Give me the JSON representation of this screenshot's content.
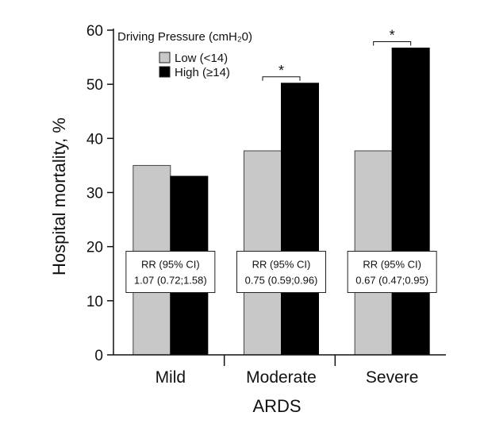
{
  "chart_data": {
    "type": "bar",
    "categories": [
      "Mild",
      "Moderate",
      "Severe"
    ],
    "series": [
      {
        "name": "Low (<14)",
        "color": "#c8c8c8",
        "values": [
          35,
          37.7,
          37.7
        ]
      },
      {
        "name": "High (≥14)",
        "color": "#000000",
        "values": [
          33,
          50.2,
          56.7
        ]
      }
    ],
    "ylim": [
      0,
      60
    ],
    "yticks": [
      0,
      10,
      20,
      30,
      40,
      50,
      60
    ],
    "ylabel": "Hospital mortality, %",
    "xlabel": "ARDS",
    "legend": {
      "title": "Driving Pressure (cmH₂0)",
      "placement": "top-left"
    },
    "grid": false,
    "significance": [
      {
        "category": "Mild",
        "marker": ""
      },
      {
        "category": "Moderate",
        "marker": "*"
      },
      {
        "category": "Severe",
        "marker": "*"
      }
    ],
    "annotations": [
      {
        "category": "Mild",
        "line1": "RR (95% CI)",
        "line2": "1.07 (0.72;1.58)"
      },
      {
        "category": "Moderate",
        "line1": "RR (95% CI)",
        "line2": "0.75 (0.59;0.96)"
      },
      {
        "category": "Severe",
        "line1": "RR (95% CI)",
        "line2": "0.67 (0.47;0.95)"
      }
    ]
  }
}
